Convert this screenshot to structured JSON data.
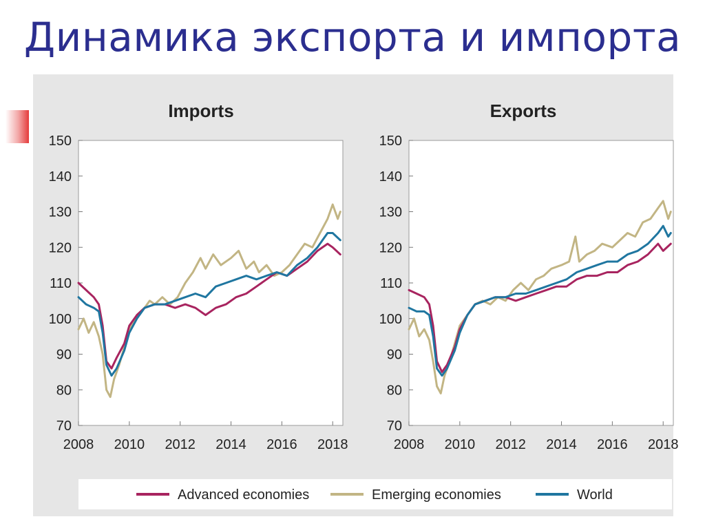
{
  "slide": {
    "title": "Динамика экспорта и импорта"
  },
  "colors": {
    "advanced": "#a8245f",
    "emerging": "#c2b584",
    "world": "#1f76a0",
    "figure_bg": "#e6e6e6",
    "plot_bg": "#ffffff",
    "title_text": "#2b2e8f"
  },
  "chart_data": [
    {
      "type": "line",
      "title": "Imports",
      "xlabel": "",
      "ylabel": "",
      "xlim": [
        2008,
        2018.4
      ],
      "ylim": [
        70,
        150
      ],
      "xticks": [
        "2008",
        "2010",
        "2012",
        "2014",
        "2016",
        "2018"
      ],
      "yticks": [
        "70",
        "80",
        "90",
        "100",
        "110",
        "120",
        "130",
        "140",
        "150"
      ],
      "grid": false,
      "series": [
        {
          "name": "Advanced economies",
          "color": "#a8245f",
          "points": [
            [
              2008.0,
              110
            ],
            [
              2008.3,
              108
            ],
            [
              2008.6,
              106
            ],
            [
              2008.8,
              104
            ],
            [
              2008.95,
              98
            ],
            [
              2009.1,
              88
            ],
            [
              2009.3,
              86
            ],
            [
              2009.5,
              89
            ],
            [
              2009.8,
              93
            ],
            [
              2010.0,
              98
            ],
            [
              2010.3,
              101
            ],
            [
              2010.6,
              103
            ],
            [
              2011.0,
              104
            ],
            [
              2011.4,
              104
            ],
            [
              2011.8,
              103
            ],
            [
              2012.2,
              104
            ],
            [
              2012.6,
              103
            ],
            [
              2013.0,
              101
            ],
            [
              2013.4,
              103
            ],
            [
              2013.8,
              104
            ],
            [
              2014.2,
              106
            ],
            [
              2014.6,
              107
            ],
            [
              2015.0,
              109
            ],
            [
              2015.4,
              111
            ],
            [
              2015.8,
              113
            ],
            [
              2016.2,
              112
            ],
            [
              2016.6,
              114
            ],
            [
              2017.0,
              116
            ],
            [
              2017.4,
              119
            ],
            [
              2017.8,
              121
            ],
            [
              2018.0,
              120
            ],
            [
              2018.3,
              118
            ]
          ]
        },
        {
          "name": "Emerging economies",
          "color": "#c2b584",
          "points": [
            [
              2008.0,
              97
            ],
            [
              2008.2,
              100
            ],
            [
              2008.4,
              96
            ],
            [
              2008.6,
              99
            ],
            [
              2008.8,
              95
            ],
            [
              2008.95,
              90
            ],
            [
              2009.1,
              80
            ],
            [
              2009.25,
              78
            ],
            [
              2009.4,
              83
            ],
            [
              2009.6,
              87
            ],
            [
              2009.8,
              92
            ],
            [
              2010.0,
              97
            ],
            [
              2010.3,
              101
            ],
            [
              2010.6,
              103
            ],
            [
              2010.8,
              105
            ],
            [
              2011.0,
              104
            ],
            [
              2011.3,
              106
            ],
            [
              2011.6,
              104
            ],
            [
              2011.9,
              106
            ],
            [
              2012.2,
              110
            ],
            [
              2012.5,
              113
            ],
            [
              2012.8,
              117
            ],
            [
              2013.0,
              114
            ],
            [
              2013.3,
              118
            ],
            [
              2013.6,
              115
            ],
            [
              2014.0,
              117
            ],
            [
              2014.3,
              119
            ],
            [
              2014.6,
              114
            ],
            [
              2014.9,
              116
            ],
            [
              2015.1,
              113
            ],
            [
              2015.4,
              115
            ],
            [
              2015.7,
              112
            ],
            [
              2016.0,
              113
            ],
            [
              2016.3,
              115
            ],
            [
              2016.6,
              118
            ],
            [
              2016.9,
              121
            ],
            [
              2017.2,
              120
            ],
            [
              2017.5,
              124
            ],
            [
              2017.8,
              128
            ],
            [
              2018.0,
              132
            ],
            [
              2018.2,
              128
            ],
            [
              2018.3,
              130
            ]
          ]
        },
        {
          "name": "World",
          "color": "#1f76a0",
          "points": [
            [
              2008.0,
              106
            ],
            [
              2008.3,
              104
            ],
            [
              2008.6,
              103
            ],
            [
              2008.8,
              102
            ],
            [
              2008.95,
              96
            ],
            [
              2009.1,
              87
            ],
            [
              2009.3,
              84
            ],
            [
              2009.5,
              86
            ],
            [
              2009.8,
              91
            ],
            [
              2010.0,
              96
            ],
            [
              2010.3,
              100
            ],
            [
              2010.6,
              103
            ],
            [
              2011.0,
              104
            ],
            [
              2011.4,
              104
            ],
            [
              2011.8,
              105
            ],
            [
              2012.2,
              106
            ],
            [
              2012.6,
              107
            ],
            [
              2013.0,
              106
            ],
            [
              2013.4,
              109
            ],
            [
              2013.8,
              110
            ],
            [
              2014.2,
              111
            ],
            [
              2014.6,
              112
            ],
            [
              2015.0,
              111
            ],
            [
              2015.4,
              112
            ],
            [
              2015.8,
              113
            ],
            [
              2016.2,
              112
            ],
            [
              2016.6,
              115
            ],
            [
              2017.0,
              117
            ],
            [
              2017.4,
              120
            ],
            [
              2017.8,
              124
            ],
            [
              2018.0,
              124
            ],
            [
              2018.3,
              122
            ]
          ]
        }
      ]
    },
    {
      "type": "line",
      "title": "Exports",
      "xlabel": "",
      "ylabel": "",
      "xlim": [
        2008,
        2018.4
      ],
      "ylim": [
        70,
        150
      ],
      "xticks": [
        "2008",
        "2010",
        "2012",
        "2014",
        "2016",
        "2018"
      ],
      "yticks": [
        "70",
        "80",
        "90",
        "100",
        "110",
        "120",
        "130",
        "140",
        "150"
      ],
      "grid": false,
      "series": [
        {
          "name": "Advanced economies",
          "color": "#a8245f",
          "points": [
            [
              2008.0,
              108
            ],
            [
              2008.3,
              107
            ],
            [
              2008.6,
              106
            ],
            [
              2008.8,
              104
            ],
            [
              2008.95,
              98
            ],
            [
              2009.1,
              88
            ],
            [
              2009.3,
              85
            ],
            [
              2009.5,
              87
            ],
            [
              2009.8,
              92
            ],
            [
              2010.0,
              97
            ],
            [
              2010.3,
              101
            ],
            [
              2010.6,
              104
            ],
            [
              2011.0,
              105
            ],
            [
              2011.4,
              106
            ],
            [
              2011.8,
              106
            ],
            [
              2012.2,
              105
            ],
            [
              2012.6,
              106
            ],
            [
              2013.0,
              107
            ],
            [
              2013.4,
              108
            ],
            [
              2013.8,
              109
            ],
            [
              2014.2,
              109
            ],
            [
              2014.6,
              111
            ],
            [
              2015.0,
              112
            ],
            [
              2015.4,
              112
            ],
            [
              2015.8,
              113
            ],
            [
              2016.2,
              113
            ],
            [
              2016.6,
              115
            ],
            [
              2017.0,
              116
            ],
            [
              2017.4,
              118
            ],
            [
              2017.8,
              121
            ],
            [
              2018.0,
              119
            ],
            [
              2018.3,
              121
            ]
          ]
        },
        {
          "name": "Emerging economies",
          "color": "#c2b584",
          "points": [
            [
              2008.0,
              97
            ],
            [
              2008.2,
              100
            ],
            [
              2008.4,
              95
            ],
            [
              2008.6,
              97
            ],
            [
              2008.8,
              94
            ],
            [
              2008.95,
              88
            ],
            [
              2009.1,
              81
            ],
            [
              2009.25,
              79
            ],
            [
              2009.4,
              84
            ],
            [
              2009.6,
              88
            ],
            [
              2009.8,
              93
            ],
            [
              2010.0,
              98
            ],
            [
              2010.3,
              101
            ],
            [
              2010.6,
              104
            ],
            [
              2010.9,
              105
            ],
            [
              2011.2,
              104
            ],
            [
              2011.5,
              106
            ],
            [
              2011.8,
              105
            ],
            [
              2012.1,
              108
            ],
            [
              2012.4,
              110
            ],
            [
              2012.7,
              108
            ],
            [
              2013.0,
              111
            ],
            [
              2013.3,
              112
            ],
            [
              2013.6,
              114
            ],
            [
              2014.0,
              115
            ],
            [
              2014.3,
              116
            ],
            [
              2014.55,
              123
            ],
            [
              2014.7,
              116
            ],
            [
              2015.0,
              118
            ],
            [
              2015.3,
              119
            ],
            [
              2015.6,
              121
            ],
            [
              2016.0,
              120
            ],
            [
              2016.3,
              122
            ],
            [
              2016.6,
              124
            ],
            [
              2016.9,
              123
            ],
            [
              2017.2,
              127
            ],
            [
              2017.5,
              128
            ],
            [
              2017.8,
              131
            ],
            [
              2018.0,
              133
            ],
            [
              2018.2,
              128
            ],
            [
              2018.3,
              130
            ]
          ]
        },
        {
          "name": "World",
          "color": "#1f76a0",
          "points": [
            [
              2008.0,
              103
            ],
            [
              2008.3,
              102
            ],
            [
              2008.6,
              102
            ],
            [
              2008.8,
              101
            ],
            [
              2008.95,
              95
            ],
            [
              2009.1,
              86
            ],
            [
              2009.3,
              84
            ],
            [
              2009.5,
              86
            ],
            [
              2009.8,
              91
            ],
            [
              2010.0,
              96
            ],
            [
              2010.3,
              101
            ],
            [
              2010.6,
              104
            ],
            [
              2011.0,
              105
            ],
            [
              2011.4,
              106
            ],
            [
              2011.8,
              106
            ],
            [
              2012.2,
              107
            ],
            [
              2012.6,
              107
            ],
            [
              2013.0,
              108
            ],
            [
              2013.4,
              109
            ],
            [
              2013.8,
              110
            ],
            [
              2014.2,
              111
            ],
            [
              2014.6,
              113
            ],
            [
              2015.0,
              114
            ],
            [
              2015.4,
              115
            ],
            [
              2015.8,
              116
            ],
            [
              2016.2,
              116
            ],
            [
              2016.6,
              118
            ],
            [
              2017.0,
              119
            ],
            [
              2017.4,
              121
            ],
            [
              2017.8,
              124
            ],
            [
              2018.0,
              126
            ],
            [
              2018.2,
              123
            ],
            [
              2018.3,
              124
            ]
          ]
        }
      ]
    }
  ],
  "legend": {
    "placement": "bottom",
    "items": [
      "Advanced economies",
      "Emerging economies",
      "World"
    ]
  }
}
